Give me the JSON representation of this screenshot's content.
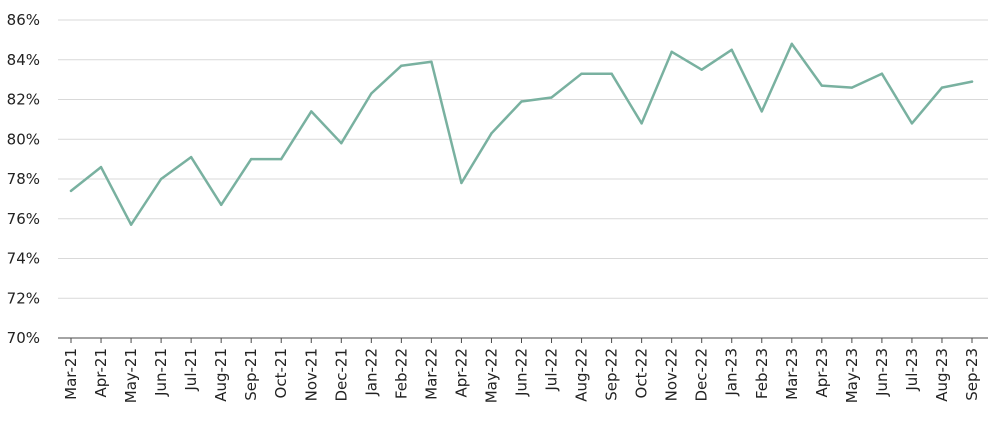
{
  "chart_data": {
    "type": "line",
    "title": "",
    "xlabel": "",
    "ylabel": "",
    "x": [
      "Mar-21",
      "Apr-21",
      "May-21",
      "Jun-21",
      "Jul-21",
      "Aug-21",
      "Sep-21",
      "Oct-21",
      "Nov-21",
      "Dec-21",
      "Jan-22",
      "Feb-22",
      "Mar-22",
      "Apr-22",
      "May-22",
      "Jun-22",
      "Jul-22",
      "Aug-22",
      "Sep-22",
      "Oct-22",
      "Nov-22",
      "Dec-22",
      "Jan-23",
      "Feb-23",
      "Mar-23",
      "Apr-23",
      "May-23",
      "Jun-23",
      "Jul-23",
      "Aug-23",
      "Sep-23"
    ],
    "series": [
      {
        "values": [
          77.4,
          78.6,
          75.7,
          78.0,
          79.1,
          76.7,
          79.0,
          79.0,
          81.4,
          79.8,
          82.3,
          83.7,
          83.9,
          77.8,
          80.3,
          81.9,
          82.1,
          83.3,
          83.3,
          80.8,
          84.4,
          83.5,
          84.5,
          81.4,
          84.8,
          82.7,
          82.6,
          83.3,
          80.8,
          82.6,
          82.9
        ],
        "color": "#79b1a0"
      }
    ],
    "ylim": [
      70,
      86
    ],
    "yticks": [
      70,
      72,
      74,
      76,
      78,
      80,
      82,
      84,
      86
    ],
    "ytick_labels": [
      "70%",
      "72%",
      "74%",
      "76%",
      "78%",
      "80%",
      "82%",
      "84%",
      "86%"
    ],
    "grid": true,
    "legend": "none",
    "colors": {
      "grid": "#d9d9d9",
      "axis": "#4a4a4a",
      "text": "#222222"
    }
  }
}
